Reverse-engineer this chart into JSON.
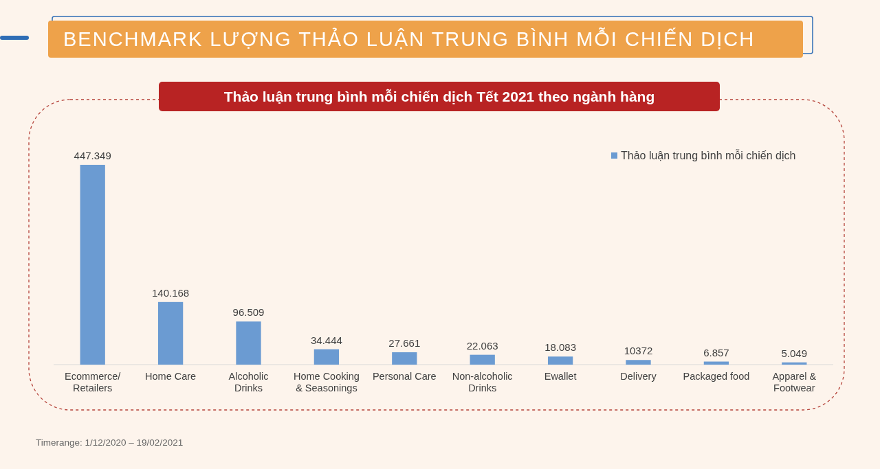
{
  "chart_data": {
    "type": "bar",
    "title": "BENCHMARK LƯỢNG THẢO LUẬN TRUNG BÌNH MỖI CHIẾN DỊCH",
    "subtitle": "Thảo luận trung bình mỗi chiến dịch Tết 2021 theo ngành hàng",
    "categories": [
      "Ecommerce/ Retailers",
      "Home Care",
      "Alcoholic Drinks",
      "Home Cooking & Seasonings",
      "Personal Care",
      "Non-alcoholic Drinks",
      "Ewallet",
      "Delivery",
      "Packaged food",
      "Apparel & Footwear"
    ],
    "series": [
      {
        "name": "Thảo luận trung bình mỗi chiến dịch",
        "color": "#6b9bd2",
        "values": [
          447349,
          140168,
          96509,
          34444,
          27661,
          22063,
          18083,
          10372,
          6857,
          5049
        ],
        "value_labels": [
          "447.349",
          "140.168",
          "96.509",
          "34.444",
          "27.661",
          "22.063",
          "18.083",
          "10372",
          "6.857",
          "5.049"
        ]
      }
    ],
    "legend": "top right",
    "annotations": [
      "Timerange: 1/12/2020 – 19/02/2021"
    ]
  }
}
